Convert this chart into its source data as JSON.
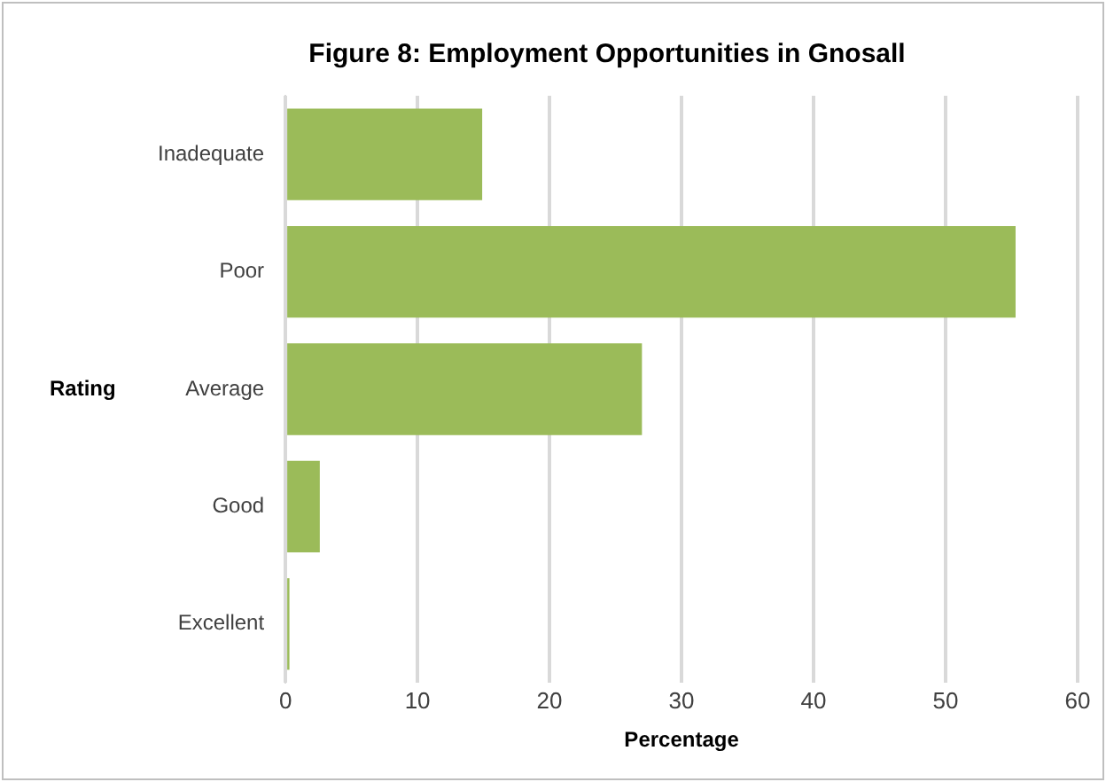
{
  "chart_data": {
    "type": "bar",
    "orientation": "horizontal",
    "title": "Figure 8: Employment Opportunities in Gnosall",
    "xlabel": "Percentage",
    "ylabel": "Rating",
    "categories": [
      "Inadequate",
      "Poor",
      "Average",
      "Good",
      "Excellent"
    ],
    "values": [
      14.9,
      55.3,
      27.0,
      2.6,
      0.3
    ],
    "color": "#9bbb59",
    "xlim": [
      0,
      60
    ],
    "xticks": [
      0,
      10,
      20,
      30,
      40,
      50,
      60
    ],
    "grid": "x",
    "legend": false
  }
}
